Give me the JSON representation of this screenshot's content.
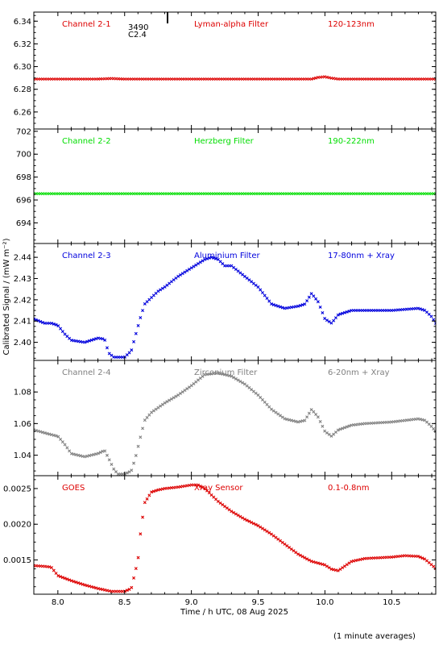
{
  "figure": {
    "ylabel": "Calibrated Signal / (mW m⁻²)",
    "xlabel": "Time / h UTC, 08 Aug 2025",
    "footnote": "(1 minute averages)",
    "x_ticks": [
      "8.0",
      "8.5",
      "9.0",
      "9.5",
      "10.0",
      "10.5"
    ],
    "xlim": [
      7.82,
      10.83
    ],
    "marker_labels": [
      "3490",
      "C2.4"
    ]
  },
  "chart_data": [
    {
      "type": "scatter",
      "panel": "Channel 2-1",
      "labels": [
        "Channel 2-1",
        "Lyman-alpha Filter",
        "120-123nm"
      ],
      "color": "#dd0000",
      "ylim": [
        6.245,
        6.348
      ],
      "y_ticks": [
        6.26,
        6.28,
        6.3,
        6.32,
        6.34
      ],
      "y_tick_labels": [
        "6.26",
        "6.28",
        "6.30",
        "6.32",
        "6.34"
      ],
      "x": [
        7.82,
        8.3,
        8.4,
        8.5,
        9.0,
        9.5,
        9.9,
        9.95,
        10.0,
        10.05,
        10.1,
        10.5,
        10.83
      ],
      "y": [
        6.289,
        6.289,
        6.2895,
        6.289,
        6.289,
        6.289,
        6.289,
        6.2905,
        6.291,
        6.2898,
        6.289,
        6.289,
        6.289
      ]
    },
    {
      "type": "scatter",
      "panel": "Channel 2-2",
      "labels": [
        "Channel 2-2",
        "Herzberg Filter",
        "190-222nm"
      ],
      "color": "#00dd00",
      "ylim": [
        692.2,
        702.2
      ],
      "y_ticks": [
        694,
        696,
        698,
        700,
        702
      ],
      "y_tick_labels": [
        "694",
        "696",
        "698",
        "700",
        "702"
      ],
      "x": [
        7.82,
        10.83
      ],
      "y": [
        696.55,
        696.55
      ]
    },
    {
      "type": "scatter",
      "panel": "Channel 2-3",
      "labels": [
        "Channel 2-3",
        "Aluminium Filter",
        "17-80nm + Xray"
      ],
      "color": "#0000dd",
      "ylim": [
        2.3915,
        2.4465
      ],
      "y_ticks": [
        2.4,
        2.41,
        2.42,
        2.43,
        2.44
      ],
      "y_tick_labels": [
        "2.40",
        "2.41",
        "2.42",
        "2.43",
        "2.44"
      ],
      "x": [
        7.82,
        7.9,
        7.95,
        8.0,
        8.05,
        8.1,
        8.2,
        8.3,
        8.35,
        8.38,
        8.42,
        8.45,
        8.5,
        8.55,
        8.58,
        8.62,
        8.65,
        8.7,
        8.75,
        8.8,
        8.9,
        9.0,
        9.1,
        9.15,
        9.2,
        9.25,
        9.3,
        9.4,
        9.5,
        9.6,
        9.7,
        9.8,
        9.85,
        9.9,
        9.95,
        10.0,
        10.05,
        10.1,
        10.2,
        10.3,
        10.5,
        10.7,
        10.75,
        10.8,
        10.83
      ],
      "y": [
        2.411,
        2.409,
        2.409,
        2.408,
        2.404,
        2.401,
        2.4,
        2.402,
        2.4015,
        2.395,
        2.393,
        2.393,
        2.393,
        2.396,
        2.403,
        2.412,
        2.418,
        2.421,
        2.424,
        2.426,
        2.431,
        2.435,
        2.439,
        2.44,
        2.439,
        2.436,
        2.436,
        2.431,
        2.426,
        2.418,
        2.416,
        2.417,
        2.418,
        2.423,
        2.419,
        2.411,
        2.409,
        2.413,
        2.415,
        2.415,
        2.415,
        2.416,
        2.415,
        2.412,
        2.409
      ]
    },
    {
      "type": "scatter",
      "panel": "Channel 2-4",
      "labels": [
        "Channel 2-4",
        "Zirconium Filter",
        "6-20nm + Xray"
      ],
      "color": "#808080",
      "ylim": [
        1.027,
        1.1
      ],
      "y_ticks": [
        1.04,
        1.06,
        1.08
      ],
      "y_tick_labels": [
        "1.04",
        "1.06",
        "1.08"
      ],
      "x": [
        7.82,
        7.95,
        8.0,
        8.05,
        8.1,
        8.2,
        8.3,
        8.35,
        8.38,
        8.42,
        8.45,
        8.5,
        8.55,
        8.58,
        8.62,
        8.65,
        8.7,
        8.8,
        8.9,
        9.0,
        9.1,
        9.2,
        9.3,
        9.4,
        9.5,
        9.6,
        9.7,
        9.8,
        9.85,
        9.9,
        9.95,
        10.0,
        10.05,
        10.1,
        10.2,
        10.3,
        10.5,
        10.7,
        10.75,
        10.8,
        10.83
      ],
      "y": [
        1.056,
        1.053,
        1.052,
        1.047,
        1.041,
        1.039,
        1.041,
        1.043,
        1.038,
        1.031,
        1.028,
        1.028,
        1.03,
        1.038,
        1.052,
        1.062,
        1.067,
        1.073,
        1.078,
        1.084,
        1.091,
        1.092,
        1.09,
        1.085,
        1.078,
        1.069,
        1.063,
        1.061,
        1.062,
        1.069,
        1.064,
        1.055,
        1.052,
        1.056,
        1.059,
        1.06,
        1.061,
        1.063,
        1.062,
        1.058,
        1.055
      ]
    },
    {
      "type": "scatter",
      "panel": "GOES",
      "labels": [
        "GOES",
        "Xray Sensor",
        "0.1-0.8nm"
      ],
      "color": "#dd0000",
      "ylim": [
        0.00102,
        0.00268
      ],
      "y_ticks": [
        0.0015,
        0.002,
        0.0025
      ],
      "y_tick_labels": [
        "0.0015",
        "0.0020",
        "0.0025"
      ],
      "x": [
        7.82,
        7.9,
        7.95,
        8.0,
        8.1,
        8.2,
        8.3,
        8.4,
        8.5,
        8.55,
        8.6,
        8.62,
        8.65,
        8.7,
        8.75,
        8.8,
        8.9,
        9.0,
        9.05,
        9.1,
        9.2,
        9.3,
        9.4,
        9.5,
        9.6,
        9.7,
        9.8,
        9.9,
        10.0,
        10.05,
        10.1,
        10.2,
        10.3,
        10.5,
        10.6,
        10.7,
        10.75,
        10.8,
        10.83
      ],
      "y": [
        0.00142,
        0.00141,
        0.0014,
        0.00128,
        0.00121,
        0.00115,
        0.0011,
        0.00106,
        0.00106,
        0.0011,
        0.0015,
        0.0019,
        0.0023,
        0.00245,
        0.00248,
        0.0025,
        0.00252,
        0.00255,
        0.00255,
        0.0025,
        0.00232,
        0.00218,
        0.00207,
        0.00198,
        0.00186,
        0.00172,
        0.00158,
        0.00148,
        0.00143,
        0.00137,
        0.00135,
        0.00148,
        0.00152,
        0.00154,
        0.00156,
        0.00155,
        0.00151,
        0.00143,
        0.00138
      ]
    }
  ]
}
